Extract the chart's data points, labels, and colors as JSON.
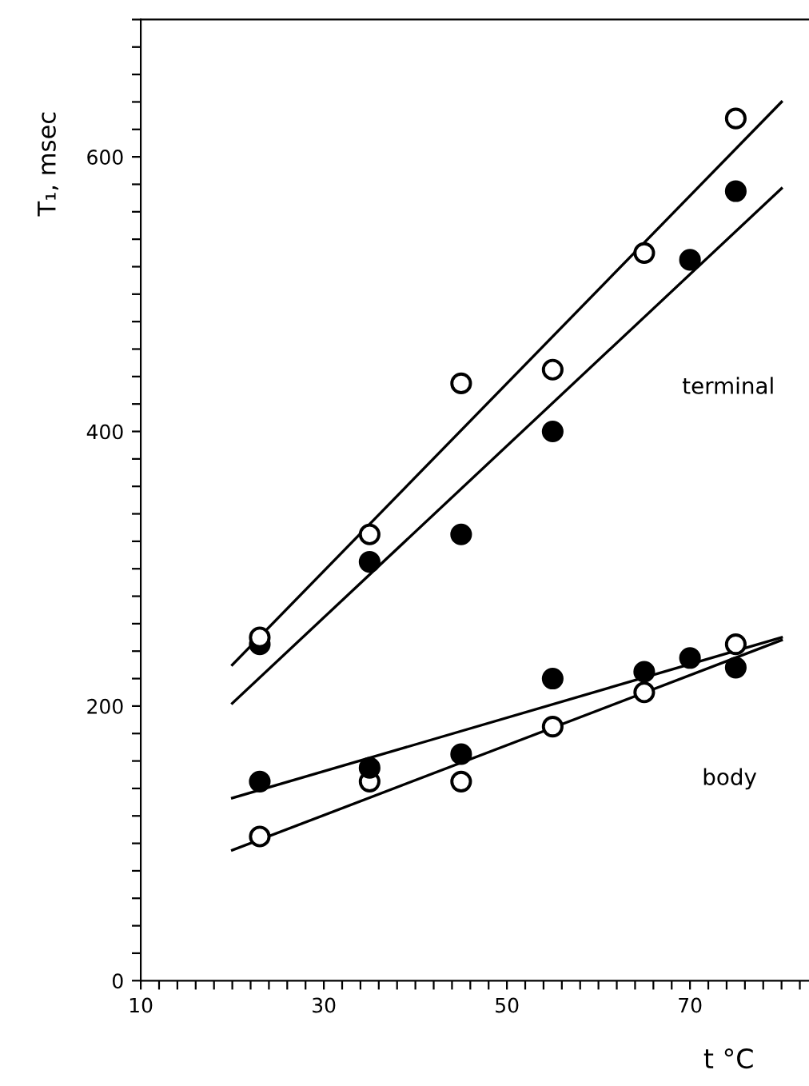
{
  "chart_data": {
    "type": "scatter",
    "xlabel": "t °C",
    "ylabel": "T₁, msec",
    "xlim": [
      10,
      83
    ],
    "ylim": [
      0,
      700
    ],
    "xticks": [
      10,
      {
        "value": 12,
        "label": null
      },
      {
        "value": 14,
        "label": null
      },
      {
        "value": 16,
        "label": null
      },
      {
        "value": 18,
        "label": null
      },
      {
        "value": 20,
        "label": null
      },
      {
        "value": 22,
        "label": null
      },
      {
        "value": 24,
        "label": null
      },
      {
        "value": 26,
        "label": null
      },
      {
        "value": 28,
        "label": null
      },
      30,
      {
        "value": 32,
        "label": null
      },
      {
        "value": 34,
        "label": null
      },
      {
        "value": 36,
        "label": null
      },
      {
        "value": 38,
        "label": null
      },
      {
        "value": 40,
        "label": null
      },
      {
        "value": 42,
        "label": null
      },
      {
        "value": 44,
        "label": null
      },
      {
        "value": 46,
        "label": null
      },
      {
        "value": 48,
        "label": null
      },
      50,
      {
        "value": 52,
        "label": null
      },
      {
        "value": 54,
        "label": null
      },
      {
        "value": 56,
        "label": null
      },
      {
        "value": 58,
        "label": null
      },
      {
        "value": 60,
        "label": null
      },
      {
        "value": 62,
        "label": null
      },
      {
        "value": 64,
        "label": null
      },
      {
        "value": 66,
        "label": null
      },
      {
        "value": 68,
        "label": null
      },
      70,
      {
        "value": 72,
        "label": null
      },
      {
        "value": 74,
        "label": null
      },
      {
        "value": 76,
        "label": null
      },
      {
        "value": 78,
        "label": null
      },
      {
        "value": 80,
        "label": null
      },
      {
        "value": 82,
        "label": null
      }
    ],
    "yticks": [
      0,
      {
        "value": 20,
        "label": null
      },
      {
        "value": 40,
        "label": null
      },
      {
        "value": 60,
        "label": null
      },
      {
        "value": 80,
        "label": null
      },
      {
        "value": 100,
        "label": null
      },
      {
        "value": 120,
        "label": null
      },
      {
        "value": 140,
        "label": null
      },
      {
        "value": 160,
        "label": null
      },
      {
        "value": 180,
        "label": null
      },
      200,
      {
        "value": 220,
        "label": null
      },
      {
        "value": 240,
        "label": null
      },
      {
        "value": 260,
        "label": null
      },
      {
        "value": 280,
        "label": null
      },
      {
        "value": 300,
        "label": null
      },
      {
        "value": 320,
        "label": null
      },
      {
        "value": 340,
        "label": null
      },
      {
        "value": 360,
        "label": null
      },
      {
        "value": 380,
        "label": null
      },
      400,
      {
        "value": 420,
        "label": null
      },
      {
        "value": 440,
        "label": null
      },
      {
        "value": 460,
        "label": null
      },
      {
        "value": 480,
        "label": null
      },
      {
        "value": 500,
        "label": null
      },
      {
        "value": 520,
        "label": null
      },
      {
        "value": 540,
        "label": null
      },
      {
        "value": 560,
        "label": null
      },
      {
        "value": 580,
        "label": null
      },
      600,
      {
        "value": 620,
        "label": null
      },
      {
        "value": 640,
        "label": null
      },
      {
        "value": 660,
        "label": null
      },
      {
        "value": 680,
        "label": null
      },
      {
        "value": 700,
        "label": null
      }
    ],
    "grid": false,
    "series": [
      {
        "type": "line",
        "color": "#000000",
        "x": [
          20,
          80
        ],
        "values": [
          230,
          640
        ]
      },
      {
        "type": "line",
        "color": "#000000",
        "x": [
          20,
          80
        ],
        "values": [
          202,
          577
        ]
      },
      {
        "type": "line",
        "color": "#000000",
        "x": [
          20,
          80
        ],
        "values": [
          133,
          250
        ]
      },
      {
        "type": "line",
        "color": "#000000",
        "x": [
          20,
          80
        ],
        "values": [
          95,
          248
        ]
      },
      {
        "marker": "circle",
        "color": "#ffffff",
        "x": [
          23,
          35,
          45,
          55,
          65,
          75
        ],
        "values": [
          250,
          325,
          435,
          445,
          530,
          628
        ]
      },
      {
        "marker": "circle",
        "color": "#000000",
        "x": [
          23,
          35,
          45,
          55,
          70,
          75
        ],
        "values": [
          245,
          305,
          325,
          400,
          525,
          575
        ]
      },
      {
        "marker": "circle",
        "color": "#000000",
        "x": [
          23,
          35,
          45,
          55,
          65,
          70,
          75
        ],
        "values": [
          145,
          155,
          165,
          220,
          225,
          235,
          228
        ]
      },
      {
        "marker": "circle",
        "color": "#ffffff",
        "x": [
          23,
          35,
          45,
          55,
          65,
          75
        ],
        "values": [
          105,
          145,
          145,
          185,
          210,
          245
        ]
      }
    ],
    "annotations": [
      "terminal",
      "body"
    ]
  }
}
